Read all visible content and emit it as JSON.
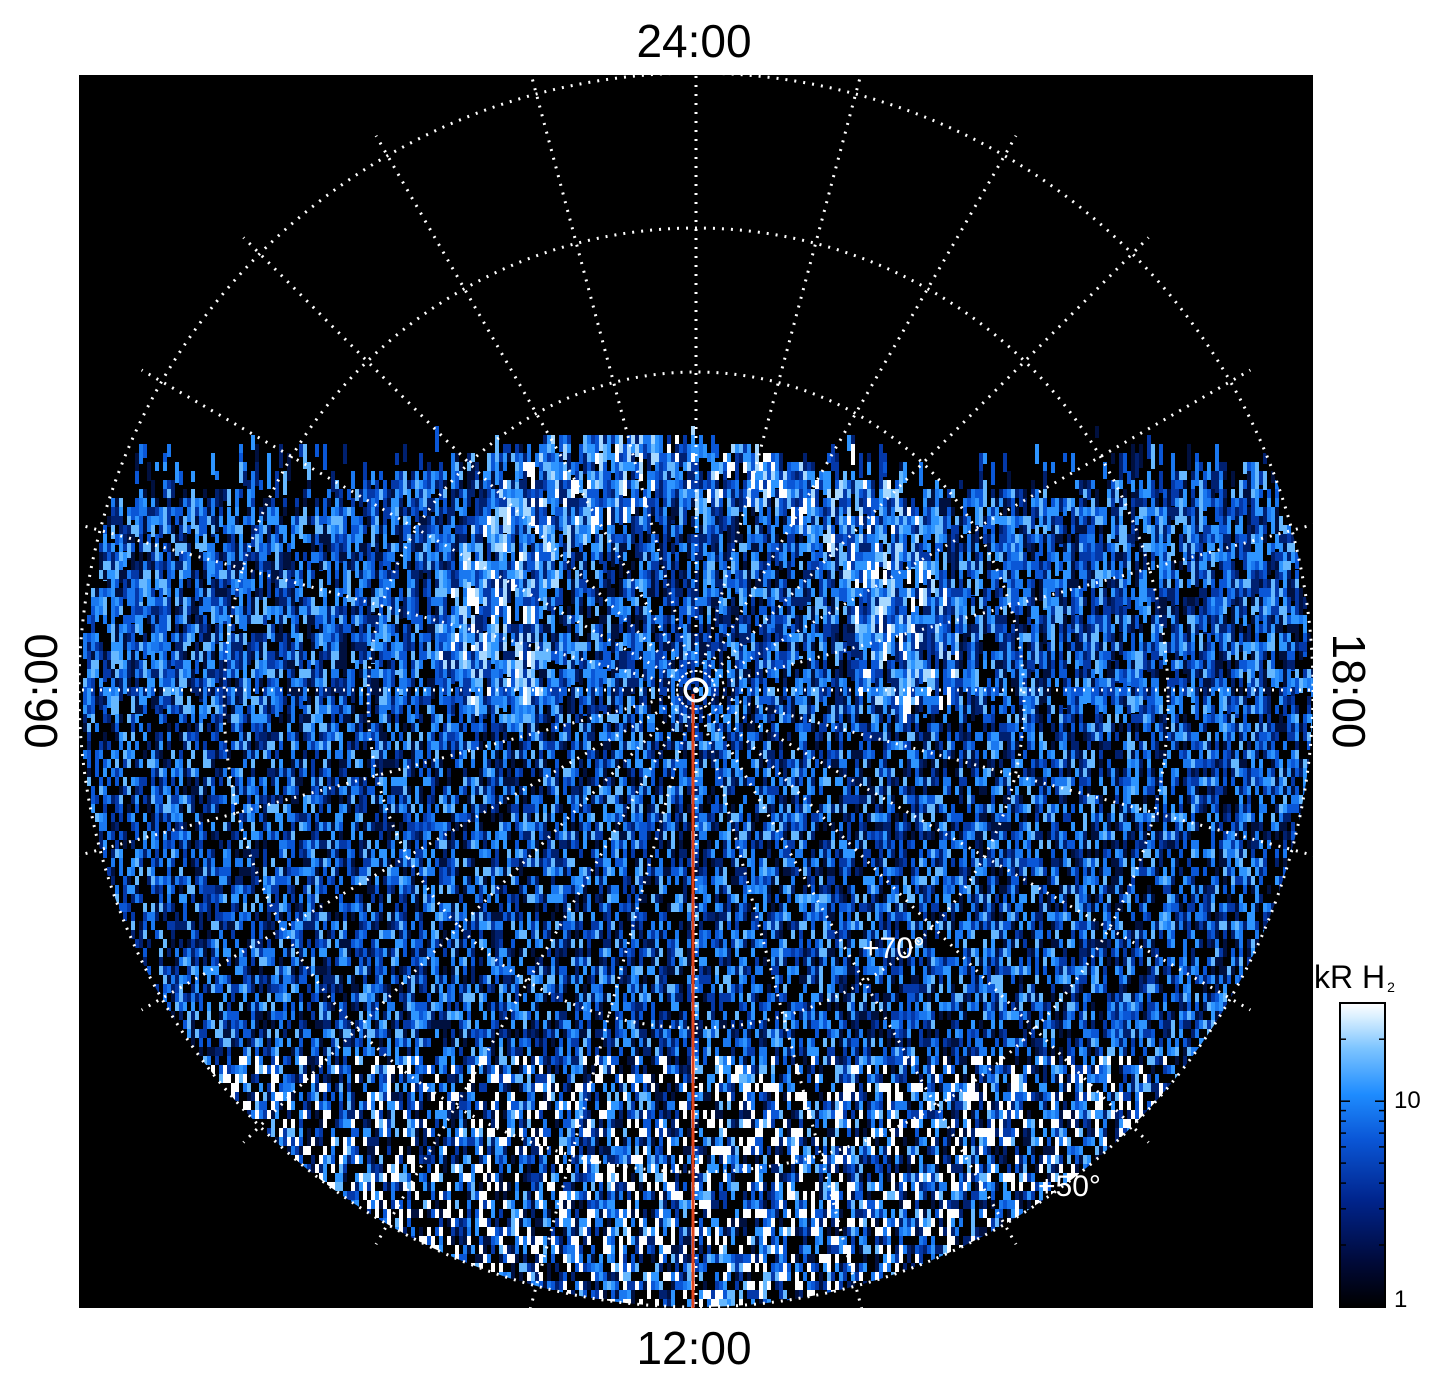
{
  "figure": {
    "time_labels": {
      "top": "24:00",
      "bottom": "12:00",
      "left": "06:00",
      "right": "18:00"
    },
    "latitude_labels": {
      "inner": "+70°",
      "outer": "+50°"
    },
    "colorbar": {
      "title": "kR H",
      "title_subscript": "2",
      "scale": "log",
      "ticks": [
        {
          "value": 1,
          "label": "1"
        },
        {
          "value": 10,
          "label": "10"
        }
      ],
      "range": [
        1,
        30
      ],
      "colors": [
        "#000000",
        "#000a3a",
        "#00248c",
        "#0a56d6",
        "#1e8cff",
        "#7cc4ff",
        "#d6eeff",
        "#ffffff"
      ]
    },
    "colors": {
      "background": "#000000",
      "grid": "#ffffff",
      "meridian_line": "#e0451c",
      "emission": "#1e8cff"
    }
  }
}
